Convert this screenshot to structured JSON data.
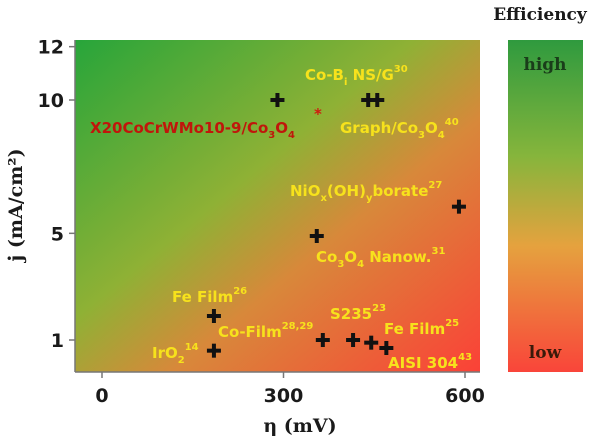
{
  "chart_data": {
    "type": "scatter",
    "title": "",
    "xlabel": "η (mV)",
    "ylabel": "j (mA/cm²)",
    "x_ticks": [
      "0",
      "300",
      "600"
    ],
    "y_ticks": [
      "1",
      "5",
      "10",
      "12"
    ],
    "colorbar": {
      "title": "Efficiency",
      "high_label": "high",
      "low_label": "low",
      "colors": [
        "#2f9a3e",
        "#f9453a"
      ]
    },
    "points": [
      {
        "x": 290,
        "y": 10.0,
        "label": "X20CoCrWMo10-9/Co3O4",
        "label_color": "#c0160b"
      },
      {
        "x": 440,
        "y": 10.0,
        "label": "Co-Bi NS/G (ref. 30)",
        "label_color": "#f7e21c"
      },
      {
        "x": 455,
        "y": 10.0,
        "label": "Graph/Co3O4 (ref. 40)",
        "label_color": "#f7e21c"
      },
      {
        "x": 590,
        "y": 6.0,
        "label": "NiOx(OH)y borate (ref. 27)",
        "label_color": "#f7e21c"
      },
      {
        "x": 355,
        "y": 4.9,
        "label": "Co3O4 Nanow. (ref. 31)",
        "label_color": "#f7e21c"
      },
      {
        "x": 185,
        "y": 1.9,
        "label": "Fe Film (ref. 26)",
        "label_color": "#f7e21c"
      },
      {
        "x": 185,
        "y": 0.6,
        "label": "IrO2 (ref. 14)",
        "label_color": "#f7e21c"
      },
      {
        "x": 365,
        "y": 1.0,
        "label": "Co-Film (refs. 28, 29)",
        "label_color": "#f7e21c"
      },
      {
        "x": 415,
        "y": 1.0,
        "label": "S235 (ref. 23)",
        "label_color": "#f7e21c"
      },
      {
        "x": 445,
        "y": 0.9,
        "label": "Fe Film (ref. 25)",
        "label_color": "#f7e21c"
      },
      {
        "x": 470,
        "y": 0.7,
        "label": "AISI 304 (ref. 43)",
        "label_color": "#f7e21c"
      }
    ]
  },
  "labels": {
    "p1_main": "X20CoCrWMo10-9/Co",
    "p1_sub1": "3",
    "p1_mid": "O",
    "p1_sub2": "4",
    "p1_star": "*",
    "p2_main": "Co-B",
    "p2_sub": "i",
    "p2_rest": " NS/G",
    "p2_sup": "30",
    "p3_main": "Graph/Co",
    "p3_sub1": "3",
    "p3_mid": "O",
    "p3_sub2": "4",
    "p3_sup": "40",
    "p4_a": "NiO",
    "p4_sub1": "x",
    "p4_b": "(OH)",
    "p4_sub2": "y",
    "p4_c": "borate",
    "p4_sup": "27",
    "p5_a": "Co",
    "p5_sub1": "3",
    "p5_b": "O",
    "p5_sub2": "4",
    "p5_c": " Nanow.",
    "p5_sup": "31",
    "p6_main": "Fe Film",
    "p6_sup": "26",
    "p7_main": "IrO",
    "p7_sub": "2",
    "p7_sup": "14",
    "p8_main": "Co-Film",
    "p8_sup": "28,29",
    "p9_main": "S235",
    "p9_sup": "23",
    "p10_main": "Fe Film",
    "p10_sup": "25",
    "p11_main": "AISI 304",
    "p11_sup": "43"
  }
}
